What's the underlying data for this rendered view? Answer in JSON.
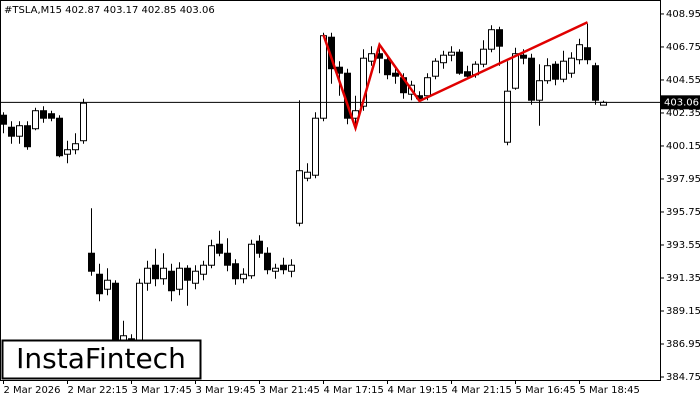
{
  "chart_data": {
    "type": "candlestick",
    "title": "#TSLA,M15  402.87 403.17 402.85 403.06",
    "watermark": "InstaFintech",
    "categories": [
      "2 Mar 2026",
      null,
      null,
      null,
      null,
      null,
      null,
      null,
      "2 Mar 22:15",
      null,
      null,
      null,
      null,
      null,
      null,
      null,
      "3 Mar 17:45",
      null,
      null,
      null,
      null,
      null,
      null,
      null,
      "3 Mar 19:45",
      null,
      null,
      null,
      null,
      null,
      null,
      null,
      "3 Mar 21:45",
      null,
      null,
      null,
      null,
      null,
      null,
      null,
      "4 Mar 17:15",
      null,
      null,
      null,
      null,
      null,
      null,
      null,
      "4 Mar 19:15",
      null,
      null,
      null,
      null,
      null,
      null,
      null,
      "4 Mar 21:15",
      null,
      null,
      null,
      null,
      null,
      null,
      null,
      "5 Mar 16:45",
      null,
      null,
      null,
      null,
      null,
      null,
      null,
      "5 Mar 18:45",
      null,
      null,
      null
    ],
    "open": [
      402.2,
      401.4,
      400.8,
      401.5,
      401.3,
      402.5,
      402.3,
      402.0,
      399.6,
      399.9,
      400.5,
      393.0,
      391.6,
      390.6,
      391.0,
      386.8,
      387.3,
      387.0,
      391.0,
      392.2,
      391.3,
      391.8,
      390.6,
      392.0,
      391.0,
      391.6,
      392.2,
      393.6,
      393.0,
      392.3,
      391.3,
      391.5,
      393.8,
      393.0,
      391.8,
      392.2,
      391.8,
      395.0,
      398.0,
      398.2,
      402.0,
      407.4,
      405.4,
      405.0,
      402.0,
      402.8,
      405.8,
      406.3,
      405.9,
      405.0,
      404.7,
      403.6,
      403.5,
      403.5,
      404.8,
      405.7,
      406.2,
      406.4,
      405.1,
      404.9,
      405.6,
      406.6,
      407.9,
      400.4,
      404.0,
      406.2,
      406.0,
      403.2,
      404.5,
      405.6,
      404.6,
      405.0,
      405.9,
      406.7,
      405.5,
      402.87
    ],
    "high": [
      402.4,
      401.8,
      401.8,
      401.8,
      402.7,
      402.8,
      402.5,
      402.2,
      400.5,
      401.0,
      403.3,
      396.0,
      392.3,
      392.0,
      391.2,
      388.5,
      387.6,
      391.3,
      392.5,
      393.3,
      393.0,
      392.3,
      392.4,
      392.2,
      392.2,
      392.5,
      393.9,
      394.5,
      394.0,
      392.6,
      392.0,
      393.9,
      394.2,
      393.4,
      392.3,
      392.7,
      392.6,
      403.2,
      399.0,
      402.4,
      407.7,
      407.7,
      405.8,
      405.3,
      403.5,
      406.6,
      406.8,
      406.9,
      406.1,
      405.3,
      405.0,
      404.5,
      403.8,
      405.0,
      406.0,
      406.5,
      406.8,
      406.6,
      405.5,
      405.8,
      407.2,
      408.2,
      408.1,
      405.8,
      406.7,
      406.6,
      406.3,
      405.6,
      406.0,
      405.8,
      406.5,
      406.4,
      407.3,
      408.3,
      405.7,
      403.17
    ],
    "low": [
      401.0,
      400.3,
      400.3,
      399.9,
      401.2,
      401.7,
      401.8,
      399.4,
      399.0,
      399.6,
      400.3,
      391.5,
      389.8,
      390.2,
      387.0,
      386.5,
      386.3,
      386.8,
      390.5,
      390.8,
      390.9,
      389.8,
      390.2,
      389.5,
      390.6,
      391.2,
      392.0,
      392.8,
      391.8,
      390.9,
      391.0,
      391.3,
      392.7,
      391.6,
      391.3,
      391.6,
      391.4,
      394.8,
      397.8,
      398.0,
      401.8,
      404.3,
      403.5,
      401.6,
      401.3,
      402.5,
      405.5,
      405.0,
      404.6,
      404.3,
      403.3,
      403.2,
      403.1,
      403.2,
      404.6,
      405.3,
      405.8,
      404.9,
      404.6,
      404.7,
      405.4,
      406.4,
      405.5,
      400.2,
      403.9,
      405.6,
      402.9,
      401.5,
      404.3,
      404.2,
      404.4,
      404.7,
      405.6,
      405.6,
      402.9,
      402.85
    ],
    "close": [
      401.6,
      400.8,
      401.5,
      400.1,
      402.5,
      402.0,
      402.0,
      399.5,
      399.9,
      400.3,
      403.0,
      391.8,
      390.3,
      391.2,
      386.8,
      387.5,
      386.6,
      391.0,
      392.0,
      391.3,
      392.0,
      390.5,
      392.0,
      391.2,
      391.8,
      392.2,
      393.5,
      393.0,
      392.2,
      391.3,
      391.6,
      393.6,
      393.0,
      391.9,
      392.0,
      391.9,
      392.2,
      398.5,
      398.4,
      402.0,
      407.5,
      405.3,
      405.0,
      402.0,
      402.5,
      406.0,
      406.3,
      406.0,
      404.9,
      404.8,
      403.7,
      404.2,
      403.3,
      404.7,
      405.8,
      406.2,
      406.4,
      405.0,
      404.8,
      405.6,
      406.6,
      407.9,
      406.8,
      403.8,
      406.3,
      406.0,
      403.2,
      404.5,
      405.5,
      404.6,
      405.8,
      406.0,
      406.9,
      405.9,
      403.2,
      403.06
    ],
    "up_color": "#ffffff",
    "down_color": "#000000",
    "last_price": 403.06,
    "overlay": {
      "color": "#e00000",
      "index": [
        40,
        44,
        47,
        52,
        73
      ],
      "values": [
        407.55,
        401.35,
        406.9,
        403.15,
        408.4
      ]
    },
    "ylim": [
      384.55,
      409.88
    ],
    "yticks": [
      408.95,
      406.75,
      404.55,
      402.35,
      400.15,
      397.95,
      395.75,
      393.55,
      391.35,
      389.15,
      386.95,
      384.75
    ]
  }
}
